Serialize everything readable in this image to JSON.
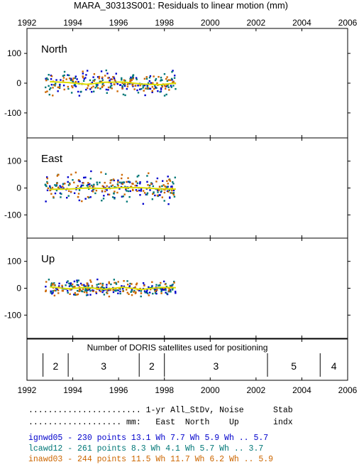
{
  "chart_data": {
    "type": "scatter",
    "title": "MARA_30313S001: Residuals to linear motion (mm)",
    "x_ticks": [
      "1992",
      "1994",
      "1996",
      "1998",
      "2000",
      "2002",
      "2004",
      "2006"
    ],
    "x_range": [
      1992,
      2006
    ],
    "y_range": [
      -160,
      160
    ],
    "y_ticks": [
      "100",
      "0",
      "-100"
    ],
    "panels": [
      {
        "label": "North",
        "scatter": 35,
        "trend": [
          [
            1993.0,
            5
          ],
          [
            1993.8,
            2
          ],
          [
            1994.6,
            -4
          ],
          [
            1995.4,
            3
          ],
          [
            1996.2,
            4
          ],
          [
            1997.0,
            -3
          ],
          [
            1997.8,
            -5
          ],
          [
            1998.5,
            0
          ]
        ]
      },
      {
        "label": "East",
        "scatter": 45,
        "trend": [
          [
            1993.0,
            -5
          ],
          [
            1993.8,
            -4
          ],
          [
            1994.6,
            0
          ],
          [
            1995.4,
            -2
          ],
          [
            1996.2,
            2
          ],
          [
            1997.0,
            1
          ],
          [
            1997.8,
            -3
          ],
          [
            1998.5,
            -4
          ]
        ]
      },
      {
        "label": "Up",
        "scatter": 25,
        "trend": [
          [
            1993.0,
            5
          ],
          [
            1993.8,
            -2
          ],
          [
            1994.6,
            3
          ],
          [
            1995.4,
            -4
          ],
          [
            1996.2,
            4
          ],
          [
            1997.0,
            -5
          ],
          [
            1997.8,
            3
          ],
          [
            1998.5,
            2
          ]
        ]
      }
    ],
    "data_span": [
      1992.8,
      1998.5
    ],
    "series": [
      {
        "name": "ignwd05",
        "color": "#0000cc"
      },
      {
        "name": "lcawd12",
        "color": "#007777"
      },
      {
        "name": "inawd03",
        "color": "#cc6600"
      }
    ],
    "trend_color": "#dddd00",
    "satellites": {
      "title": "Number of DORIS satellites used for positioning",
      "segments": [
        {
          "start": 1992.7,
          "end": 1993.8,
          "count": "2"
        },
        {
          "start": 1993.8,
          "end": 1996.9,
          "count": "3"
        },
        {
          "start": 1996.9,
          "end": 1998.0,
          "count": "2"
        },
        {
          "start": 1998.0,
          "end": 2002.5,
          "count": "3"
        },
        {
          "start": 2002.5,
          "end": 2004.8,
          "count": "5"
        },
        {
          "start": 2004.8,
          "end": 2006.0,
          "count": "4"
        }
      ]
    }
  },
  "stats": {
    "header1": "....................... 1-yr All_StDv, Noise      Stab",
    "header2": "................... mm:   East  North    Up       indx",
    "rows": [
      {
        "text": "ignwd05 - 230 points   13.1 Wh   7.7 Wh   5.9 Wh ..  5.7",
        "color": "#0000cc"
      },
      {
        "text": "lcawd12 - 261 points    8.3 Wh   4.1 Wh   5.7 Wh ..  3.7",
        "color": "#007777"
      },
      {
        "text": "inawd03 - 244 points   11.5 Wh  11.7 Wh   6.2 Wh ..  5.9",
        "color": "#cc6600"
      }
    ]
  }
}
